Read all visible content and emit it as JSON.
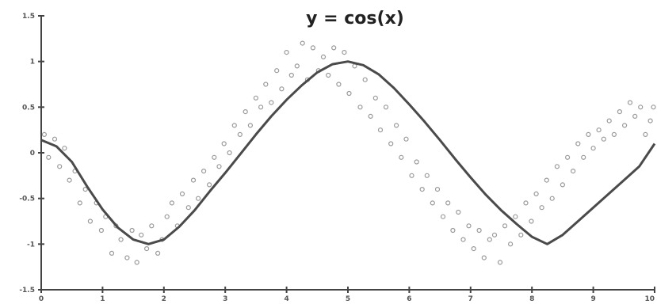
{
  "chart_data": {
    "type": "line",
    "title": "y = cos(x)",
    "xlabel": "",
    "ylabel": "",
    "xlim": [
      0,
      10
    ],
    "ylim": [
      -1.5,
      1.5
    ],
    "grid": false,
    "legend": "none",
    "xticks": [
      0,
      1,
      2,
      3,
      4,
      5,
      6,
      7,
      8,
      9,
      10
    ],
    "xtick_labels": [
      "0",
      "1",
      "2",
      "3",
      "4",
      "5",
      "6",
      "7",
      "8",
      "9",
      "10"
    ],
    "yticks": [
      1.5,
      1,
      0.5,
      0,
      -0.5,
      -1,
      -1.5
    ],
    "ytick_labels": [
      "1.5",
      "1",
      "0.5",
      "0",
      "-0.5",
      "-1",
      "-1.5"
    ],
    "series": [
      {
        "kind": "line",
        "x": [
          0,
          0.25,
          0.5,
          0.75,
          1,
          1.25,
          1.5,
          1.75,
          2,
          2.25,
          2.5,
          2.75,
          3,
          3.25,
          3.5,
          3.75,
          4,
          4.25,
          4.5,
          4.75,
          5,
          5.25,
          5.5,
          5.75,
          6,
          6.25,
          6.5,
          6.75,
          7,
          7.25,
          7.5,
          7.75,
          8,
          8.25,
          8.5,
          8.75,
          9,
          9.25,
          9.5,
          9.75,
          10
        ],
        "y": [
          0.14,
          0.07,
          -0.1,
          -0.37,
          -0.62,
          -0.82,
          -0.95,
          -1.0,
          -0.95,
          -0.81,
          -0.63,
          -0.42,
          -0.22,
          -0.01,
          0.2,
          0.4,
          0.58,
          0.74,
          0.88,
          0.97,
          1.0,
          0.96,
          0.86,
          0.71,
          0.53,
          0.34,
          0.14,
          -0.07,
          -0.27,
          -0.46,
          -0.63,
          -0.78,
          -0.92,
          -1.0,
          -0.9,
          -0.75,
          -0.6,
          -0.45,
          -0.3,
          -0.15,
          0.1
        ]
      },
      {
        "kind": "scatter",
        "x": [
          0.05,
          0.12,
          0.22,
          0.3,
          0.38,
          0.46,
          0.55,
          0.63,
          0.72,
          0.8,
          0.9,
          0.98,
          1.05,
          1.15,
          1.22,
          1.3,
          1.4,
          1.48,
          1.56,
          1.63,
          1.72,
          1.8,
          1.9,
          1.97,
          2.05,
          2.13,
          2.22,
          2.3,
          2.4,
          2.48,
          2.56,
          2.65,
          2.74,
          2.82,
          2.9,
          2.98,
          3.07,
          3.15,
          3.24,
          3.33,
          3.41,
          3.5,
          3.58,
          3.66,
          3.75,
          3.84,
          3.92,
          4.0,
          4.08,
          4.17,
          4.26,
          4.34,
          4.43,
          4.52,
          4.6,
          4.68,
          4.77,
          4.85,
          4.94,
          5.02,
          5.11,
          5.2,
          5.28,
          5.37,
          5.45,
          5.53,
          5.62,
          5.7,
          5.79,
          5.87,
          5.95,
          6.04,
          6.12,
          6.21,
          6.29,
          6.38,
          6.46,
          6.55,
          6.63,
          6.71,
          6.8,
          6.88,
          6.97,
          7.05,
          7.14,
          7.22,
          7.31,
          7.39,
          7.48,
          7.56,
          7.65,
          7.73,
          7.82,
          7.9,
          7.99,
          8.07,
          8.16,
          8.24,
          8.33,
          8.41,
          8.5,
          8.58,
          8.67,
          8.75,
          8.84,
          8.92,
          9.0,
          9.09,
          9.17,
          9.26,
          9.34,
          9.43,
          9.51,
          9.6,
          9.68,
          9.77,
          9.85,
          9.93,
          9.98
        ],
        "y": [
          0.2,
          -0.05,
          0.15,
          -0.15,
          0.05,
          -0.3,
          -0.2,
          -0.55,
          -0.4,
          -0.75,
          -0.55,
          -0.85,
          -0.7,
          -1.1,
          -0.8,
          -0.95,
          -1.15,
          -0.85,
          -1.2,
          -0.9,
          -1.05,
          -0.8,
          -1.1,
          -0.95,
          -0.7,
          -0.55,
          -0.8,
          -0.45,
          -0.6,
          -0.3,
          -0.5,
          -0.2,
          -0.35,
          -0.05,
          -0.15,
          0.1,
          0.0,
          0.3,
          0.2,
          0.45,
          0.3,
          0.6,
          0.5,
          0.75,
          0.55,
          0.9,
          0.7,
          1.1,
          0.85,
          0.95,
          1.2,
          0.8,
          1.15,
          0.9,
          1.05,
          0.85,
          1.15,
          0.75,
          1.1,
          0.65,
          0.95,
          0.5,
          0.8,
          0.4,
          0.6,
          0.25,
          0.5,
          0.1,
          0.3,
          -0.05,
          0.15,
          -0.25,
          -0.1,
          -0.4,
          -0.25,
          -0.55,
          -0.4,
          -0.7,
          -0.55,
          -0.85,
          -0.65,
          -0.95,
          -0.8,
          -1.05,
          -0.85,
          -1.15,
          -0.95,
          -0.9,
          -1.2,
          -0.8,
          -1.0,
          -0.7,
          -0.9,
          -0.55,
          -0.75,
          -0.45,
          -0.6,
          -0.3,
          -0.5,
          -0.15,
          -0.35,
          -0.05,
          -0.2,
          0.1,
          -0.05,
          0.2,
          0.05,
          0.25,
          0.15,
          0.35,
          0.2,
          0.45,
          0.3,
          0.55,
          0.4,
          0.5,
          0.2,
          0.35,
          0.5
        ]
      }
    ],
    "colors": {
      "line": "#4a4a4a",
      "markers": "#9a9a9a",
      "axis": "#444444"
    }
  }
}
